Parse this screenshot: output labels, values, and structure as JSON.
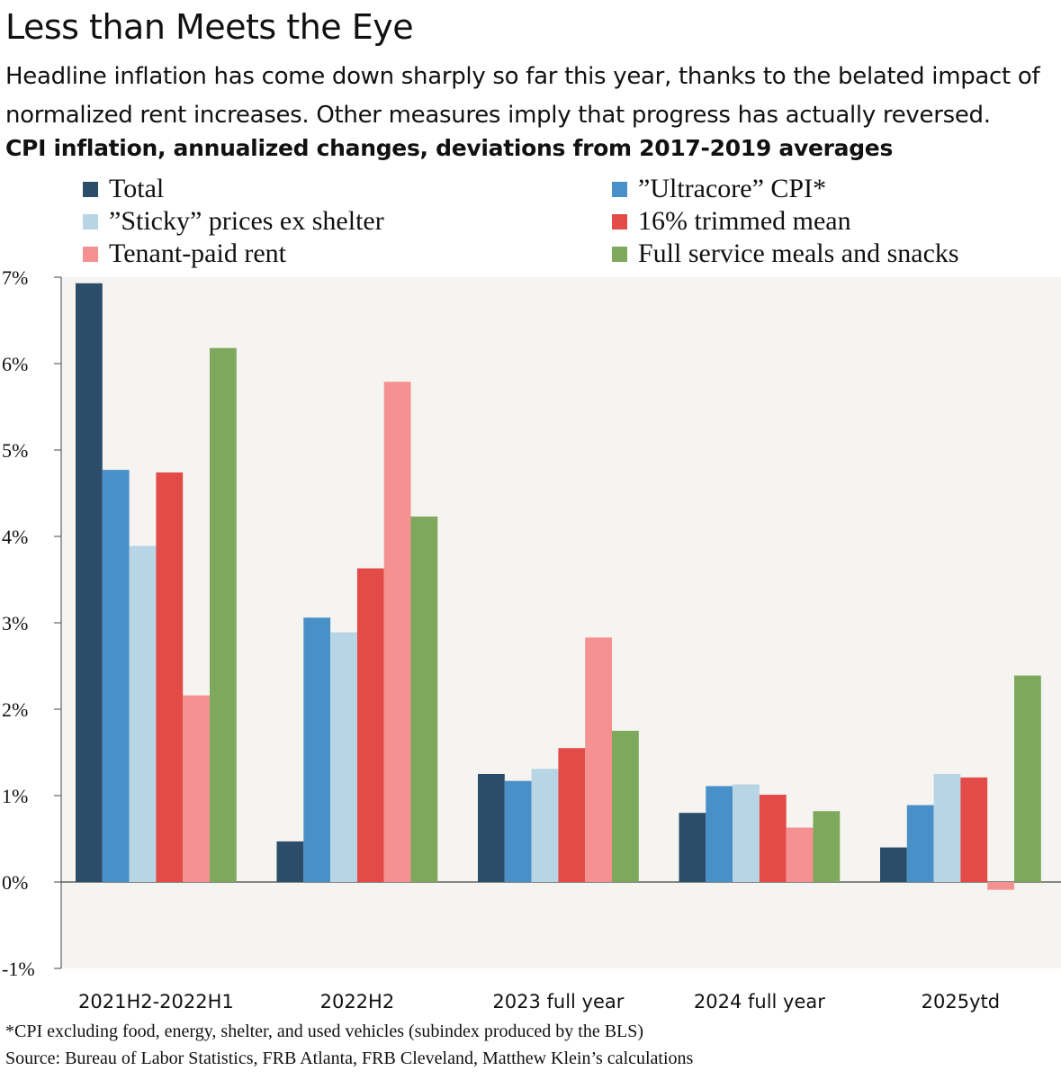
{
  "header": {
    "title": "Less than Meets the Eye",
    "subtitle": "Headline inflation has come down sharply so far this year, thanks to the belated impact of normalized rent increases. Other measures imply that progress has actually reversed.",
    "chart_heading": "CPI inflation, annualized changes, deviations from 2017-2019 averages"
  },
  "footer": {
    "note": "*CPI excluding food, energy, shelter, and used vehicles (subindex produced by the BLS)",
    "source": "Source: Bureau of Labor Statistics, FRB Atlanta, FRB Cleveland, Matthew Klein’s calculations"
  },
  "colors": {
    "plot_background": "#f6f4f0",
    "axis": "#444444"
  },
  "chart_data": {
    "type": "bar",
    "title": "CPI inflation, annualized changes, deviations from 2017-2019 averages",
    "xlabel": "",
    "ylabel": "",
    "ylim": [
      -1,
      7
    ],
    "y_ticks": [
      -1,
      0,
      1,
      2,
      3,
      4,
      5,
      6,
      7
    ],
    "y_tick_labels": [
      "-1%",
      "0%",
      "1%",
      "2%",
      "3%",
      "4%",
      "5%",
      "6%",
      "7%"
    ],
    "categories": [
      "2021H2-2022H1",
      "2022H2",
      "2023 full year",
      "2024 full year",
      "2025ytd"
    ],
    "legend_position": "top",
    "series": [
      {
        "name": "Total",
        "color": "#2b4d69",
        "values": [
          6.93,
          0.47,
          1.25,
          0.8,
          0.4
        ]
      },
      {
        "name": "”Ultracore” CPI*",
        "color": "#4a90c8",
        "values": [
          4.77,
          3.06,
          1.17,
          1.11,
          0.89
        ]
      },
      {
        "name": "”Sticky” prices ex shelter",
        "color": "#b8d5e5",
        "values": [
          3.89,
          2.89,
          1.31,
          1.13,
          1.25
        ]
      },
      {
        "name": "16% trimmed mean",
        "color": "#e24b47",
        "values": [
          4.74,
          3.63,
          1.55,
          1.01,
          1.21
        ]
      },
      {
        "name": "Tenant-paid rent",
        "color": "#f59190",
        "values": [
          2.16,
          5.79,
          2.83,
          0.63,
          -0.09
        ]
      },
      {
        "name": "Full service meals and snacks",
        "color": "#7ea85b",
        "values": [
          6.18,
          4.23,
          1.75,
          0.82,
          2.39
        ]
      }
    ]
  }
}
